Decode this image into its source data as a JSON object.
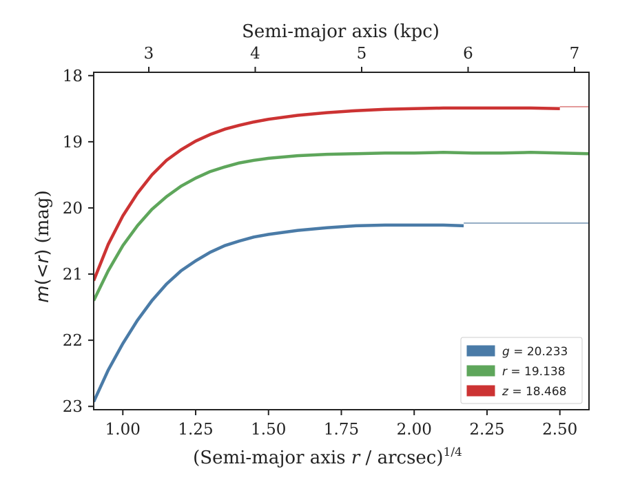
{
  "chart_data": {
    "type": "line",
    "xlabel": "(Semi-major axis r / arcsec)",
    "xlabel_parts": {
      "prefix": "(Semi-major axis ",
      "var": "r",
      "suffix": " / arcsec)",
      "sup": "1/4"
    },
    "ylabel": "m(< r) (mag)",
    "ylabel_parts": {
      "m": "m",
      "mid": "(<",
      "r": "r",
      "close": ")",
      "unit": " (mag)"
    },
    "top_xlabel": "Semi-major axis (kpc)",
    "xlim": [
      0.9,
      2.6
    ],
    "ylim": [
      23.05,
      17.95
    ],
    "y_inverted": true,
    "x_ticks": [
      1.0,
      1.25,
      1.5,
      1.75,
      2.0,
      2.25,
      2.5
    ],
    "x_tick_labels": [
      "1.00",
      "1.25",
      "1.50",
      "1.75",
      "2.00",
      "2.25",
      "2.50"
    ],
    "y_ticks": [
      18,
      19,
      20,
      21,
      22,
      23
    ],
    "y_tick_labels": [
      "18",
      "19",
      "20",
      "21",
      "22",
      "23"
    ],
    "top_ticks": [
      3,
      4,
      5,
      6,
      7
    ],
    "top_tick_labels": [
      "3",
      "4",
      "5",
      "6",
      "7"
    ],
    "legend_position": "lower-right",
    "series": [
      {
        "name": "g = 20.233",
        "band": "g",
        "value": "20.233",
        "color": "#4a7ba7",
        "x": [
          0.9,
          0.95,
          1.0,
          1.05,
          1.1,
          1.15,
          1.2,
          1.25,
          1.3,
          1.35,
          1.4,
          1.45,
          1.5,
          1.6,
          1.7,
          1.8,
          1.9,
          2.0,
          2.1,
          2.17
        ],
        "y": [
          22.93,
          22.45,
          22.05,
          21.7,
          21.4,
          21.15,
          20.95,
          20.8,
          20.67,
          20.57,
          20.5,
          20.44,
          20.4,
          20.34,
          20.3,
          20.27,
          20.26,
          20.26,
          20.26,
          20.27
        ],
        "extension": {
          "x": [
            2.17,
            2.6
          ],
          "y": [
            20.23,
            20.23
          ],
          "color": "#94adc4"
        }
      },
      {
        "name": "r = 19.138",
        "band": "r",
        "value": "19.138",
        "color": "#5ea65b",
        "x": [
          0.9,
          0.95,
          1.0,
          1.05,
          1.1,
          1.15,
          1.2,
          1.25,
          1.3,
          1.35,
          1.4,
          1.45,
          1.5,
          1.6,
          1.7,
          1.8,
          1.9,
          2.0,
          2.1,
          2.2,
          2.3,
          2.4,
          2.5,
          2.6
        ],
        "y": [
          21.4,
          20.95,
          20.57,
          20.27,
          20.02,
          19.83,
          19.67,
          19.55,
          19.45,
          19.38,
          19.32,
          19.28,
          19.25,
          19.21,
          19.19,
          19.18,
          19.17,
          19.17,
          19.16,
          19.17,
          19.17,
          19.16,
          19.17,
          19.18
        ]
      },
      {
        "name": "z = 18.468",
        "band": "z",
        "value": "18.468",
        "color": "#cc3333",
        "x": [
          0.9,
          0.95,
          1.0,
          1.05,
          1.1,
          1.15,
          1.2,
          1.25,
          1.3,
          1.35,
          1.4,
          1.45,
          1.5,
          1.6,
          1.7,
          1.8,
          1.9,
          2.0,
          2.1,
          2.2,
          2.3,
          2.4,
          2.5
        ],
        "y": [
          21.1,
          20.55,
          20.12,
          19.78,
          19.5,
          19.28,
          19.12,
          18.99,
          18.89,
          18.81,
          18.75,
          18.7,
          18.66,
          18.6,
          18.56,
          18.53,
          18.51,
          18.5,
          18.49,
          18.49,
          18.49,
          18.49,
          18.5
        ],
        "extension": {
          "x": [
            2.5,
            2.6
          ],
          "y": [
            18.47,
            18.47
          ],
          "color": "#e39a9a"
        }
      }
    ]
  }
}
